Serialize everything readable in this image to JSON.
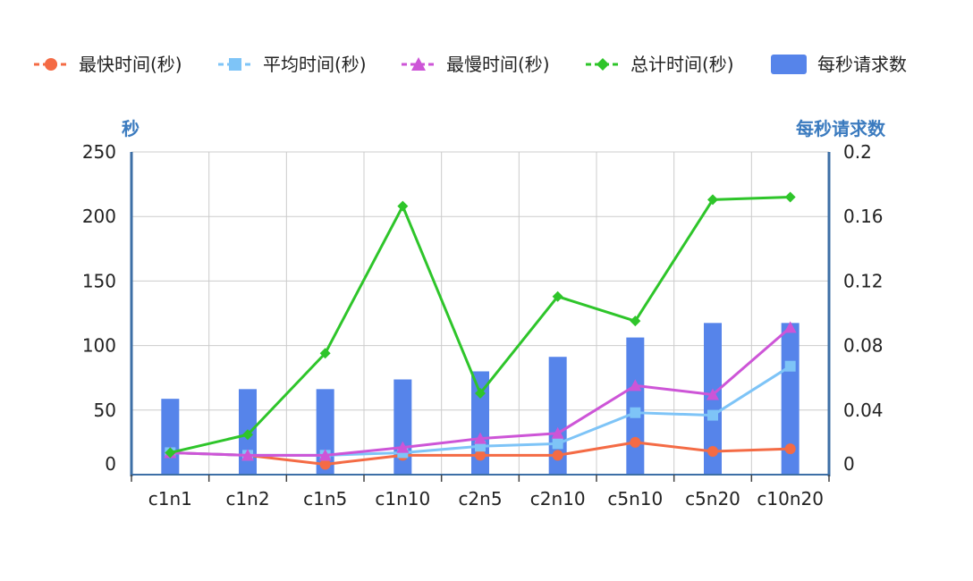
{
  "chart_data": {
    "type": "bar+line",
    "title": "",
    "categories": [
      "c1n1",
      "c1n2",
      "c1n5",
      "c1n10",
      "c2n5",
      "c2n10",
      "c5n10",
      "c5n20",
      "c10n20"
    ],
    "left_axis": {
      "label": "秒",
      "ticks": [
        0,
        50,
        100,
        150,
        200,
        250
      ],
      "range": [
        0,
        250
      ]
    },
    "right_axis": {
      "label": "每秒请求数",
      "ticks": [
        "0",
        "0.04",
        "0.08",
        "0.12",
        "0.16",
        "0.2"
      ],
      "range": [
        0,
        0.2
      ]
    },
    "grid": true,
    "legend_position": "top",
    "series": [
      {
        "name": "最快时间(秒)",
        "type": "line",
        "axis": "left",
        "color": "#f46b45",
        "marker": "circle",
        "values": [
          17,
          15,
          8,
          15,
          15,
          15,
          25,
          18,
          20
        ]
      },
      {
        "name": "平均时间(秒)",
        "type": "line",
        "axis": "left",
        "color": "#7ec4f7",
        "marker": "square",
        "values": [
          17,
          15,
          15,
          17,
          22,
          24,
          48,
          46,
          84
        ]
      },
      {
        "name": "最慢时间(秒)",
        "type": "line",
        "axis": "left",
        "color": "#cd55d7",
        "marker": "triangle",
        "values": [
          17,
          15,
          15,
          21,
          28,
          32,
          69,
          62,
          114
        ]
      },
      {
        "name": "总计时间(秒)",
        "type": "line",
        "axis": "left",
        "color": "#2ec52a",
        "marker": "diamond",
        "values": [
          17,
          31,
          94,
          208,
          63,
          138,
          119,
          213,
          215
        ]
      },
      {
        "name": "每秒请求数",
        "type": "bar",
        "axis": "right",
        "color": "#5684ea",
        "values": [
          0.047,
          0.053,
          0.053,
          0.059,
          0.064,
          0.073,
          0.085,
          0.094,
          0.094
        ]
      }
    ]
  }
}
